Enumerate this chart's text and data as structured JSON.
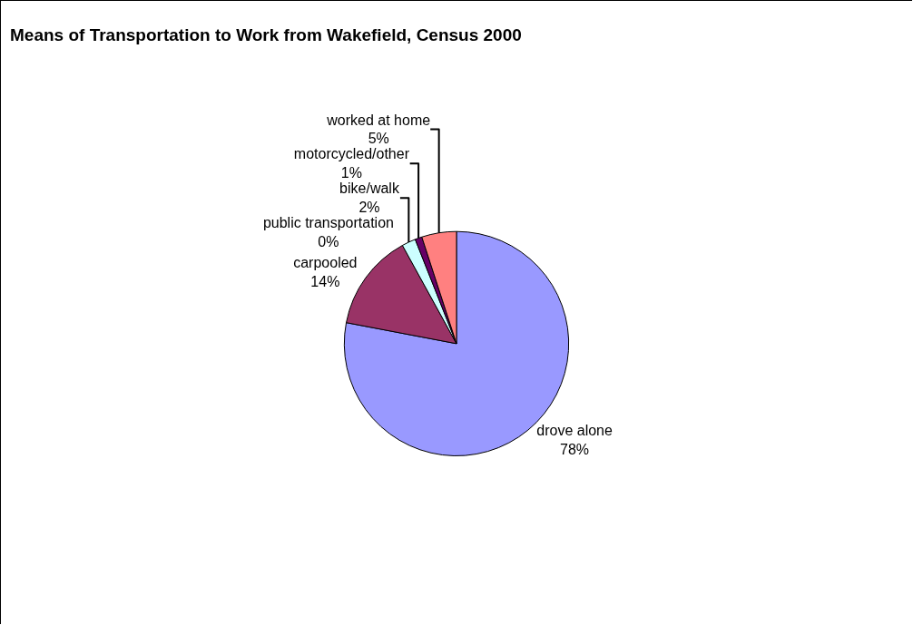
{
  "chart_data": {
    "type": "pie",
    "title": "Means of Transportation to Work from Wakefield, Census 2000",
    "categories": [
      "drove alone",
      "carpooled",
      "public transportation",
      "bike/walk",
      "motorcycled/other",
      "worked at home"
    ],
    "values": [
      78,
      14,
      0,
      2,
      1,
      5
    ],
    "value_labels": [
      "78%",
      "14%",
      "0%",
      "2%",
      "1%",
      "5%"
    ],
    "colors": [
      "#9999ff",
      "#993366",
      "#ffffcc",
      "#ccffff",
      "#660066",
      "#ff8080"
    ],
    "legend": false
  }
}
